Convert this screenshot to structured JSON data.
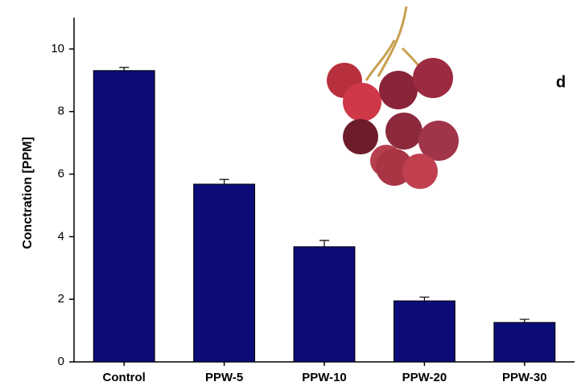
{
  "chart_data": {
    "type": "bar",
    "y_label": "Conctration [PPM]",
    "annotation": "d",
    "categories": [
      "Control",
      "PPW-5",
      "PPW-10",
      "PPW-20",
      "PPW-30"
    ],
    "values": [
      9.31,
      5.68,
      3.68,
      1.95,
      1.26
    ],
    "errors": [
      0.1,
      0.15,
      0.2,
      0.12,
      0.1
    ],
    "color": "#0c0c78",
    "ylim": [
      0,
      11
    ],
    "yticks": [
      0,
      2,
      4,
      6,
      8,
      10
    ]
  }
}
